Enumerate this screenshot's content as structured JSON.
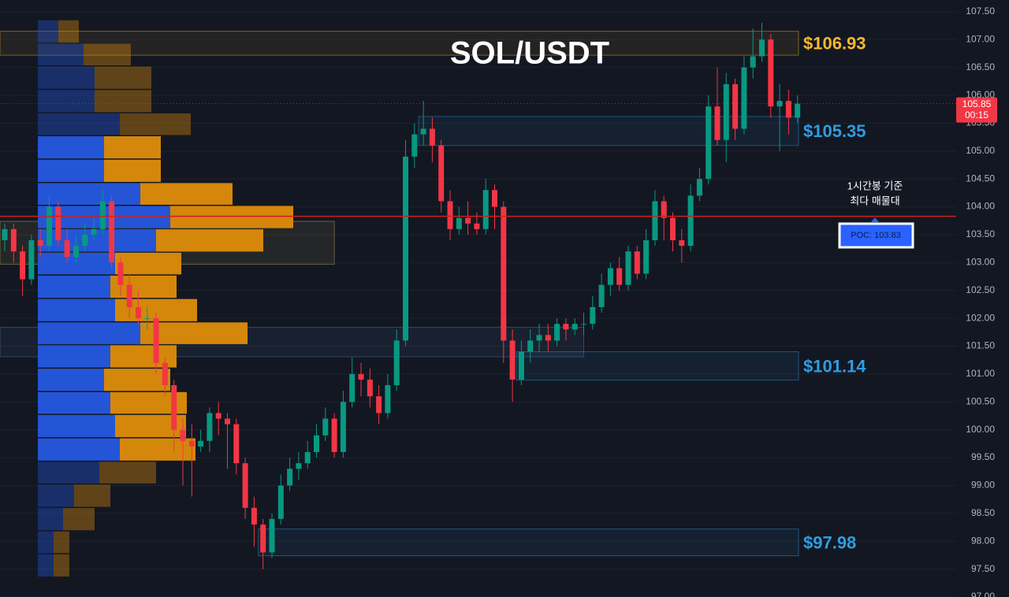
{
  "chart_data": {
    "type": "candlestick",
    "title": "SOL/USDT",
    "ylim": [
      97.0,
      107.71
    ],
    "yticks": [
      {
        "value": 97.0,
        "label": "97.00"
      },
      {
        "value": 97.5,
        "label": "97.50"
      },
      {
        "value": 98.0,
        "label": "98.00"
      },
      {
        "value": 98.5,
        "label": "98.50"
      },
      {
        "value": 99.0,
        "label": "99.00"
      },
      {
        "value": 99.5,
        "label": "99.50"
      },
      {
        "value": 100.0,
        "label": "100.00"
      },
      {
        "value": 100.5,
        "label": "100.50"
      },
      {
        "value": 101.0,
        "label": "101.00"
      },
      {
        "value": 101.5,
        "label": "101.50"
      },
      {
        "value": 102.0,
        "label": "102.00"
      },
      {
        "value": 102.5,
        "label": "102.50"
      },
      {
        "value": 103.0,
        "label": "103.00"
      },
      {
        "value": 103.5,
        "label": "103.50"
      },
      {
        "value": 104.0,
        "label": "104.00"
      },
      {
        "value": 104.5,
        "label": "104.50"
      },
      {
        "value": 105.0,
        "label": "105.00"
      },
      {
        "value": 105.5,
        "label": "105.50"
      },
      {
        "value": 106.0,
        "label": "106.00"
      },
      {
        "value": 106.5,
        "label": "106.50"
      },
      {
        "value": 107.0,
        "label": "107.00"
      },
      {
        "value": 107.5,
        "label": "107.50"
      }
    ],
    "grid": true,
    "up_color": "#089981",
    "down_color": "#f23645",
    "open": [
      103.4,
      103.6,
      103.2,
      102.7,
      103.4,
      103.3,
      104.0,
      103.4,
      103.1,
      103.3,
      103.5,
      103.6,
      104.1,
      103.0,
      102.6,
      102.2,
      102.0,
      102.0,
      101.2,
      100.8,
      100.0,
      99.8,
      99.7,
      99.8,
      100.3,
      100.2,
      100.1,
      99.4,
      98.6,
      98.3,
      97.8,
      98.4,
      99.0,
      99.3,
      99.4,
      99.6,
      99.9,
      100.2,
      99.6,
      100.5,
      101.0,
      100.9,
      100.6,
      100.3,
      100.8,
      101.6,
      104.9,
      105.3,
      105.4,
      105.1,
      104.1,
      103.6,
      103.8,
      103.7,
      103.6,
      104.3,
      104.0,
      101.6,
      100.9,
      101.4,
      101.6,
      101.7,
      101.6,
      101.9,
      101.8,
      101.9,
      101.9,
      102.2,
      102.6,
      102.9,
      102.6,
      103.2,
      102.8,
      103.4,
      104.1,
      103.8,
      103.4,
      103.3,
      104.2,
      104.5,
      105.8,
      105.2,
      106.2,
      105.4,
      106.5,
      106.7,
      107.0,
      105.8,
      105.9,
      105.6
    ],
    "high": [
      103.7,
      103.7,
      103.3,
      103.5,
      103.6,
      104.2,
      104.1,
      103.6,
      103.5,
      103.7,
      103.8,
      104.3,
      104.2,
      103.1,
      102.8,
      102.5,
      102.2,
      102.1,
      101.3,
      100.9,
      100.2,
      100.1,
      100.0,
      100.4,
      100.5,
      100.3,
      100.2,
      99.5,
      98.8,
      98.4,
      98.5,
      99.2,
      99.5,
      99.6,
      99.8,
      100.1,
      100.4,
      100.3,
      100.7,
      101.3,
      101.2,
      101.1,
      100.8,
      101.0,
      101.8,
      105.2,
      105.5,
      105.9,
      105.6,
      105.2,
      104.3,
      104.0,
      104.1,
      103.9,
      104.5,
      104.4,
      104.1,
      101.8,
      101.6,
      101.8,
      101.9,
      101.9,
      102.0,
      102.0,
      102.0,
      102.1,
      102.4,
      102.8,
      103.0,
      103.1,
      103.3,
      103.3,
      103.6,
      104.3,
      104.2,
      103.9,
      103.6,
      104.4,
      104.7,
      106.0,
      106.5,
      106.4,
      106.3,
      106.7,
      107.2,
      107.3,
      107.1,
      106.2,
      106.1,
      106.0
    ],
    "low": [
      103.2,
      103.0,
      102.4,
      102.6,
      103.1,
      103.2,
      103.3,
      103.0,
      103.0,
      103.2,
      103.4,
      103.5,
      102.9,
      102.4,
      102.0,
      101.9,
      101.8,
      101.0,
      100.6,
      99.6,
      99.0,
      98.8,
      99.6,
      99.6,
      99.9,
      99.3,
      99.2,
      98.4,
      97.9,
      97.5,
      97.7,
      98.3,
      98.9,
      99.1,
      99.3,
      99.5,
      99.8,
      99.5,
      99.5,
      100.4,
      100.6,
      100.4,
      100.1,
      100.2,
      100.7,
      101.5,
      104.7,
      105.1,
      104.8,
      103.9,
      103.4,
      103.5,
      103.5,
      103.5,
      103.5,
      103.6,
      101.2,
      100.5,
      100.8,
      101.2,
      101.4,
      101.4,
      101.5,
      101.6,
      101.7,
      101.7,
      101.8,
      102.1,
      102.4,
      102.5,
      102.5,
      102.7,
      102.7,
      103.3,
      103.4,
      103.2,
      103.0,
      103.2,
      104.1,
      104.4,
      105.1,
      104.8,
      105.2,
      105.3,
      106.3,
      106.6,
      105.6,
      105.0,
      105.3,
      105.5
    ],
    "close": [
      103.6,
      103.2,
      102.7,
      103.4,
      103.3,
      104.0,
      103.4,
      103.1,
      103.3,
      103.5,
      103.6,
      104.1,
      103.0,
      102.6,
      102.2,
      102.0,
      102.0,
      101.2,
      100.8,
      100.0,
      99.8,
      99.7,
      99.8,
      100.3,
      100.2,
      100.1,
      99.4,
      98.6,
      98.3,
      97.8,
      98.4,
      99.0,
      99.3,
      99.4,
      99.6,
      99.9,
      100.2,
      99.6,
      100.5,
      101.0,
      100.9,
      100.6,
      100.3,
      100.8,
      101.6,
      104.9,
      105.3,
      105.4,
      105.1,
      104.1,
      103.6,
      103.8,
      103.7,
      103.6,
      104.3,
      104.0,
      101.6,
      100.9,
      101.4,
      101.6,
      101.7,
      101.6,
      101.9,
      101.8,
      101.9,
      101.9,
      102.2,
      102.6,
      102.9,
      102.6,
      103.2,
      102.8,
      103.4,
      104.1,
      103.8,
      103.4,
      103.3,
      104.2,
      104.5,
      105.8,
      105.2,
      106.2,
      105.4,
      106.5,
      106.7,
      107.0,
      105.8,
      105.9,
      105.6,
      105.85
    ],
    "last_price": {
      "value": 105.85,
      "countdown": "00:15",
      "color": "#f23645"
    },
    "poc": {
      "value": 103.83,
      "label": "POC: 103.83",
      "note": [
        "1시간봉 기준",
        "최다 매물대"
      ],
      "color": "#d11e1e"
    },
    "zones": [
      {
        "low": 106.72,
        "high": 107.15,
        "from": 0,
        "label": "$106.93",
        "color": "#f5b82e"
      },
      {
        "low": 105.1,
        "high": 105.62,
        "from": 47,
        "label": "$105.35",
        "color": "#2f9de0"
      },
      {
        "low": 100.89,
        "high": 101.4,
        "from": 58,
        "label": "$101.14",
        "color": "#2f9de0"
      },
      {
        "low": 97.74,
        "high": 98.22,
        "from": 29,
        "label": "$97.98",
        "color": "#2f9de0"
      }
    ],
    "boxes": [
      {
        "low": 102.97,
        "high": 103.74,
        "from": 0,
        "to": 37,
        "color": "#c9b25a"
      },
      {
        "low": 101.31,
        "high": 101.84,
        "from": 0,
        "to": 65,
        "color": "#4f7fae"
      }
    ],
    "volume_profile": {
      "bins": [
        97.36,
        97.78,
        98.19,
        98.61,
        99.03,
        99.44,
        99.86,
        100.28,
        100.69,
        101.11,
        101.53,
        101.94,
        102.36,
        102.78,
        103.19,
        103.61,
        104.03,
        104.44,
        104.86,
        105.28,
        105.69,
        106.11,
        106.53,
        106.94,
        107.36
      ],
      "buy": [
        20,
        20,
        32,
        46,
        78,
        104,
        98,
        92,
        84,
        92,
        130,
        98,
        92,
        98,
        150,
        168,
        130,
        84,
        84,
        104,
        72,
        72,
        58,
        26
      ],
      "sell": [
        20,
        20,
        40,
        46,
        72,
        96,
        90,
        97,
        84,
        84,
        136,
        104,
        84,
        84,
        136,
        156,
        117,
        72,
        72,
        90,
        72,
        72,
        60,
        26
      ],
      "buy_color": "#2455d6",
      "sell_color": "#d4870b",
      "value_area": 0.7
    }
  }
}
